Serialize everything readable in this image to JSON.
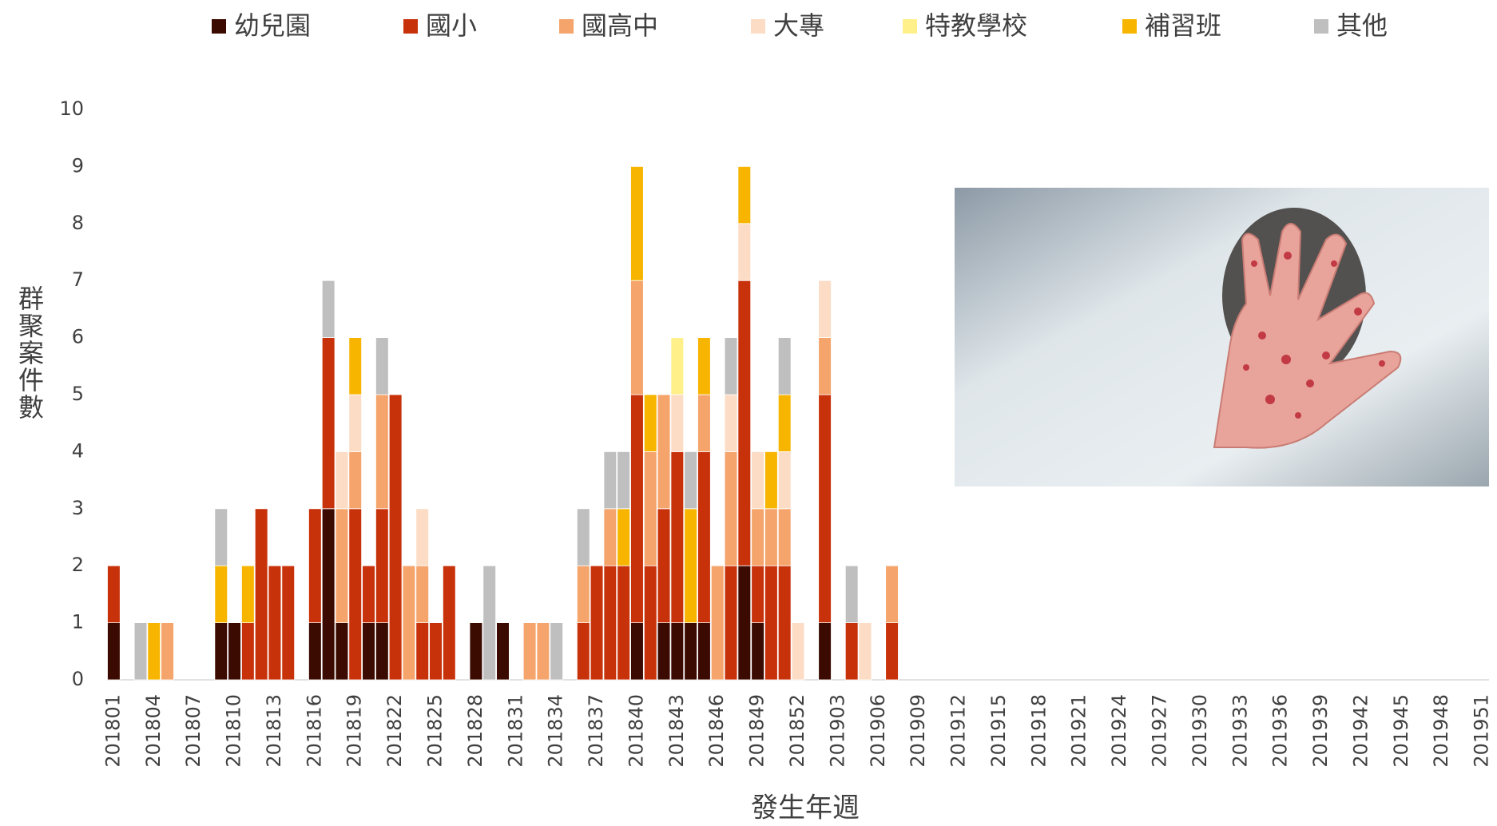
{
  "chart_data": {
    "type": "stacked_bar",
    "x_label": "發生年週",
    "y_label": "群聚案件數",
    "categories": [
      "201801",
      null,
      null,
      "201804",
      null,
      null,
      "201807",
      null,
      null,
      "201810",
      null,
      null,
      "201813",
      null,
      null,
      "201816",
      null,
      null,
      "201819",
      null,
      null,
      "201822",
      null,
      null,
      "201825",
      null,
      null,
      "201828",
      null,
      null,
      "201831",
      null,
      null,
      "201834",
      null,
      null,
      "201837",
      null,
      null,
      "201840",
      null,
      null,
      "201843",
      null,
      null,
      "201846",
      null,
      null,
      "201849",
      null,
      null,
      "201852",
      null,
      null,
      "201903",
      null,
      null,
      "201906",
      null,
      null,
      "201909",
      null,
      null,
      "201912",
      null,
      null,
      "201915",
      null,
      null,
      "201918",
      null,
      null,
      "201921",
      null,
      null,
      "201924",
      null,
      null,
      "201927",
      null,
      null,
      "201930",
      null,
      null,
      "201933",
      null,
      null,
      "201936",
      null,
      null,
      "201939",
      null,
      null,
      "201942",
      null,
      null,
      "201945",
      null,
      null,
      "201948",
      null,
      null,
      "201951"
    ],
    "series": [
      {
        "name": "幼兒園",
        "color": "#3b0a00",
        "values": [
          1,
          0,
          0,
          0,
          0,
          0,
          0,
          0,
          1,
          1,
          0,
          0,
          0,
          0,
          0,
          1,
          3,
          1,
          0,
          1,
          1,
          0,
          0,
          0,
          0,
          0,
          0,
          1,
          0,
          1,
          0,
          0,
          0,
          0,
          0,
          0,
          0,
          0,
          0,
          1,
          0,
          1,
          1,
          1,
          1,
          0,
          0,
          2,
          1,
          0,
          0,
          0,
          0,
          1,
          0,
          0,
          0,
          0,
          0,
          0,
          0,
          0,
          0,
          0,
          0,
          0,
          0,
          0,
          0,
          0,
          0,
          0,
          0,
          0,
          0,
          0,
          0,
          0,
          0,
          0,
          0,
          0,
          0,
          0,
          0,
          0,
          0,
          0,
          0,
          0,
          0,
          0,
          0,
          0,
          0,
          0,
          0,
          0,
          0,
          0,
          0,
          0,
          0
        ]
      },
      {
        "name": "國小",
        "color": "#c8320a",
        "values": [
          1,
          0,
          0,
          0,
          0,
          0,
          0,
          0,
          0,
          0,
          1,
          3,
          2,
          2,
          0,
          2,
          3,
          0,
          3,
          1,
          2,
          5,
          0,
          1,
          1,
          2,
          0,
          0,
          0,
          0,
          0,
          0,
          0,
          0,
          0,
          1,
          2,
          2,
          2,
          4,
          2,
          2,
          3,
          0,
          3,
          0,
          2,
          5,
          1,
          2,
          2,
          0,
          0,
          4,
          0,
          1,
          0,
          0,
          1,
          0,
          0,
          0,
          0,
          0,
          0,
          0,
          0,
          0,
          0,
          0,
          0,
          0,
          0,
          0,
          0,
          0,
          0,
          0,
          0,
          0,
          0,
          0,
          0,
          0,
          0,
          0,
          0,
          0,
          0,
          0,
          0,
          0,
          0,
          0,
          0,
          0,
          0,
          0,
          0,
          0,
          0,
          0,
          0
        ]
      },
      {
        "name": "國高中",
        "color": "#f5a46b",
        "values": [
          0,
          0,
          0,
          0,
          1,
          0,
          0,
          0,
          0,
          0,
          0,
          0,
          0,
          0,
          0,
          0,
          0,
          2,
          1,
          0,
          2,
          0,
          2,
          1,
          0,
          0,
          0,
          0,
          0,
          0,
          0,
          1,
          1,
          0,
          0,
          1,
          0,
          1,
          0,
          2,
          2,
          2,
          0,
          0,
          1,
          2,
          2,
          0,
          1,
          1,
          1,
          0,
          0,
          1,
          0,
          0,
          0,
          0,
          1,
          0,
          0,
          0,
          0,
          0,
          0,
          0,
          0,
          0,
          0,
          0,
          0,
          0,
          0,
          0,
          0,
          0,
          0,
          0,
          0,
          0,
          0,
          0,
          0,
          0,
          0,
          0,
          0,
          0,
          0,
          0,
          0,
          0,
          0,
          0,
          0,
          0,
          0,
          0,
          0,
          0,
          0,
          0,
          0
        ]
      },
      {
        "name": "大專",
        "color": "#fcdcc4",
        "values": [
          0,
          0,
          0,
          0,
          0,
          0,
          0,
          0,
          0,
          0,
          0,
          0,
          0,
          0,
          0,
          0,
          0,
          1,
          1,
          0,
          0,
          0,
          0,
          1,
          0,
          0,
          0,
          0,
          0,
          0,
          0,
          0,
          0,
          0,
          0,
          0,
          0,
          0,
          0,
          0,
          0,
          0,
          1,
          0,
          0,
          0,
          1,
          1,
          1,
          0,
          1,
          1,
          0,
          1,
          0,
          0,
          1,
          0,
          0,
          0,
          0,
          0,
          0,
          0,
          0,
          0,
          0,
          0,
          0,
          0,
          0,
          0,
          0,
          0,
          0,
          0,
          0,
          0,
          0,
          0,
          0,
          0,
          0,
          0,
          0,
          0,
          0,
          0,
          0,
          0,
          0,
          0,
          0,
          0,
          0,
          0,
          0,
          0,
          0,
          0,
          0,
          0,
          0
        ]
      },
      {
        "name": "特教學校",
        "color": "#fff08a",
        "values": [
          0,
          0,
          0,
          0,
          0,
          0,
          0,
          0,
          0,
          0,
          0,
          0,
          0,
          0,
          0,
          0,
          0,
          0,
          0,
          0,
          0,
          0,
          0,
          0,
          0,
          0,
          0,
          0,
          0,
          0,
          0,
          0,
          0,
          0,
          0,
          0,
          0,
          0,
          0,
          0,
          0,
          0,
          1,
          0,
          0,
          0,
          0,
          0,
          0,
          0,
          0,
          0,
          0,
          0,
          0,
          0,
          0,
          0,
          0,
          0,
          0,
          0,
          0,
          0,
          0,
          0,
          0,
          0,
          0,
          0,
          0,
          0,
          0,
          0,
          0,
          0,
          0,
          0,
          0,
          0,
          0,
          0,
          0,
          0,
          0,
          0,
          0,
          0,
          0,
          0,
          0,
          0,
          0,
          0,
          0,
          0,
          0,
          0,
          0,
          0,
          0,
          0,
          0
        ]
      },
      {
        "name": "補習班",
        "color": "#f7b500",
        "values": [
          0,
          0,
          0,
          1,
          0,
          0,
          0,
          0,
          1,
          0,
          1,
          0,
          0,
          0,
          0,
          0,
          0,
          0,
          1,
          0,
          0,
          0,
          0,
          0,
          0,
          0,
          0,
          0,
          0,
          0,
          0,
          0,
          0,
          0,
          0,
          0,
          0,
          0,
          1,
          2,
          1,
          0,
          0,
          2,
          1,
          0,
          0,
          1,
          0,
          1,
          1,
          0,
          0,
          0,
          0,
          0,
          0,
          0,
          0,
          0,
          0,
          0,
          0,
          0,
          0,
          0,
          0,
          0,
          0,
          0,
          0,
          0,
          0,
          0,
          0,
          0,
          0,
          0,
          0,
          0,
          0,
          0,
          0,
          0,
          0,
          0,
          0,
          0,
          0,
          0,
          0,
          0,
          0,
          0,
          0,
          0,
          0,
          0,
          0,
          0,
          0,
          0,
          0
        ]
      },
      {
        "name": "其他",
        "color": "#bfbfbf",
        "values": [
          0,
          0,
          1,
          0,
          0,
          0,
          0,
          0,
          1,
          0,
          0,
          0,
          0,
          0,
          0,
          0,
          1,
          0,
          0,
          0,
          1,
          0,
          0,
          0,
          0,
          0,
          0,
          0,
          2,
          0,
          0,
          0,
          0,
          1,
          0,
          1,
          0,
          1,
          1,
          0,
          0,
          0,
          0,
          1,
          0,
          0,
          1,
          0,
          0,
          0,
          1,
          0,
          0,
          0,
          0,
          1,
          0,
          0,
          0,
          0,
          0,
          0,
          0,
          0,
          0,
          0,
          0,
          0,
          0,
          0,
          0,
          0,
          0,
          0,
          0,
          0,
          0,
          0,
          0,
          0,
          0,
          0,
          0,
          0,
          0,
          0,
          0,
          0,
          0,
          0,
          0,
          0,
          0,
          0,
          0,
          0,
          0,
          0,
          0,
          0,
          0,
          0,
          0
        ]
      }
    ],
    "ylim": [
      0,
      10
    ],
    "yticks": [
      0,
      1,
      2,
      3,
      4,
      5,
      6,
      7,
      8,
      9,
      10
    ],
    "grid": false
  }
}
